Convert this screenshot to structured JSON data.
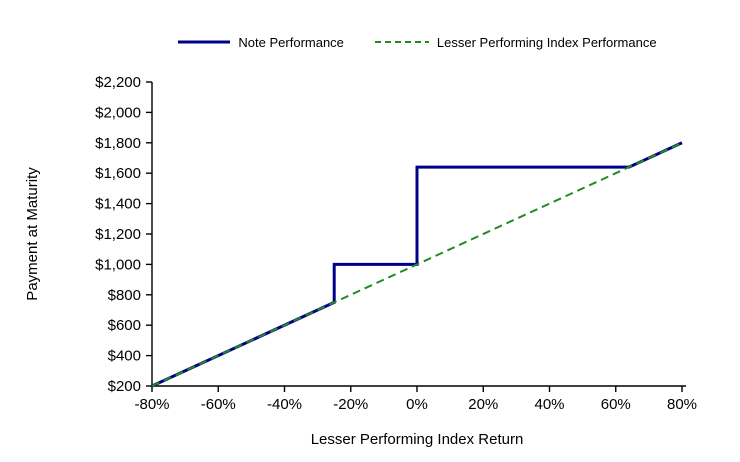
{
  "page": {
    "background_color": "#FFFFFF"
  },
  "chart_data": {
    "type": "line",
    "title": "",
    "xlabel": "Lesser Performing Index Return",
    "ylabel": "Payment at Maturity",
    "xlim": [
      -80,
      80
    ],
    "ylim": [
      200,
      2200
    ],
    "grid": false,
    "legend_position": "top-center",
    "x_ticks": [
      {
        "value": -80,
        "label": "-80%"
      },
      {
        "value": -60,
        "label": "-60%"
      },
      {
        "value": -40,
        "label": "-40%"
      },
      {
        "value": -20,
        "label": "-20%"
      },
      {
        "value": 0,
        "label": "0%"
      },
      {
        "value": 20,
        "label": "20%"
      },
      {
        "value": 40,
        "label": "40%"
      },
      {
        "value": 60,
        "label": "60%"
      },
      {
        "value": 80,
        "label": "80%"
      }
    ],
    "y_ticks": [
      {
        "value": 200,
        "label": "$200"
      },
      {
        "value": 400,
        "label": "$400"
      },
      {
        "value": 600,
        "label": "$600"
      },
      {
        "value": 800,
        "label": "$800"
      },
      {
        "value": 1000,
        "label": "$1,000"
      },
      {
        "value": 1200,
        "label": "$1,200"
      },
      {
        "value": 1400,
        "label": "$1,400"
      },
      {
        "value": 1600,
        "label": "$1,600"
      },
      {
        "value": 1800,
        "label": "$1,800"
      },
      {
        "value": 2000,
        "label": "$2,000"
      },
      {
        "value": 2200,
        "label": "$2,200"
      }
    ],
    "series": [
      {
        "name": "Note Performance",
        "color": "#00008B",
        "line_style": "solid",
        "line_width": 3,
        "points": [
          [
            -80,
            200
          ],
          [
            -25,
            750
          ],
          [
            -25,
            1000
          ],
          [
            0,
            1000
          ],
          [
            0,
            1640
          ],
          [
            64,
            1640
          ],
          [
            80,
            1800
          ]
        ]
      },
      {
        "name": "Lesser Performing Index Performance",
        "color": "#228B22",
        "line_style": "dashed",
        "line_width": 2,
        "points": [
          [
            -80,
            200
          ],
          [
            80,
            1800
          ]
        ]
      }
    ],
    "axis_color": "#000000"
  }
}
